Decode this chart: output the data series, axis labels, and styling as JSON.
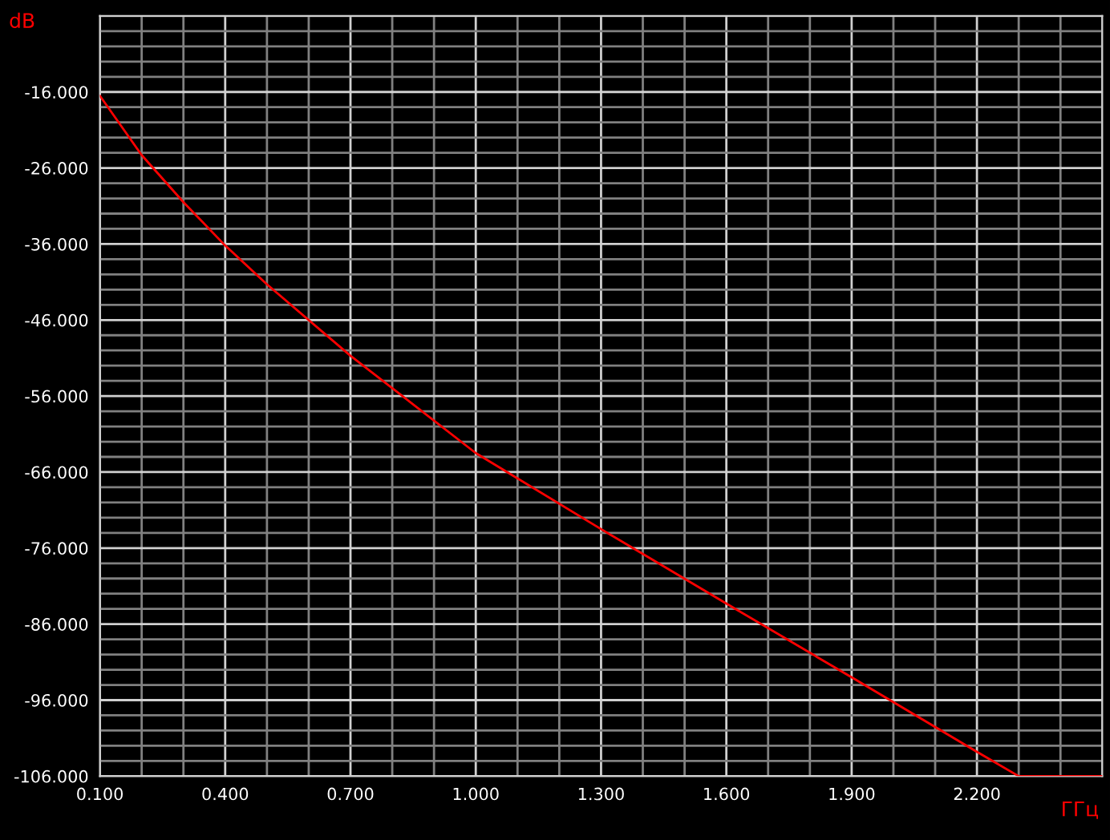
{
  "chart_data": {
    "type": "line",
    "xlabel": "ГГц",
    "ylabel": "dB",
    "x": [
      0.1,
      0.2,
      0.3,
      0.4,
      0.5,
      0.7,
      1.0,
      1.3,
      1.6,
      1.9,
      2.2,
      2.3,
      2.5
    ],
    "series": [
      {
        "color": "#ff0000",
        "values": [
          -16.5,
          -24.3,
          -30.5,
          -36.2,
          -41.3,
          -50.7,
          -63.5,
          -73.5,
          -83.3,
          -93.0,
          -102.8,
          -106.0,
          -106.0
        ]
      }
    ],
    "xlim": [
      0.1,
      2.5
    ],
    "ylim": [
      -106,
      -6
    ],
    "xticks": [
      {
        "value": 0.1,
        "label": "0.100"
      },
      {
        "value": 0.2,
        "label": null
      },
      {
        "value": 0.3,
        "label": null
      },
      {
        "value": 0.4,
        "label": "0.400"
      },
      {
        "value": 0.5,
        "label": null
      },
      {
        "value": 0.6,
        "label": null
      },
      {
        "value": 0.7,
        "label": "0.700"
      },
      {
        "value": 0.8,
        "label": null
      },
      {
        "value": 0.9,
        "label": null
      },
      {
        "value": 1.0,
        "label": "1.000"
      },
      {
        "value": 1.1,
        "label": null
      },
      {
        "value": 1.2,
        "label": null
      },
      {
        "value": 1.3,
        "label": "1.300"
      },
      {
        "value": 1.4,
        "label": null
      },
      {
        "value": 1.5,
        "label": null
      },
      {
        "value": 1.6,
        "label": "1.600"
      },
      {
        "value": 1.7,
        "label": null
      },
      {
        "value": 1.8,
        "label": null
      },
      {
        "value": 1.9,
        "label": "1.900"
      },
      {
        "value": 2.0,
        "label": null
      },
      {
        "value": 2.1,
        "label": null
      },
      {
        "value": 2.2,
        "label": "2.200"
      },
      {
        "value": 2.3,
        "label": null
      },
      {
        "value": 2.4,
        "label": null
      },
      {
        "value": 2.5,
        "label": null
      }
    ],
    "yticks": [
      {
        "value": -106,
        "label": "-106.000"
      },
      {
        "value": -104,
        "label": null
      },
      {
        "value": -102,
        "label": null
      },
      {
        "value": -100,
        "label": null
      },
      {
        "value": -98,
        "label": null
      },
      {
        "value": -96,
        "label": "-96.000"
      },
      {
        "value": -94,
        "label": null
      },
      {
        "value": -92,
        "label": null
      },
      {
        "value": -90,
        "label": null
      },
      {
        "value": -88,
        "label": null
      },
      {
        "value": -86,
        "label": "-86.000"
      },
      {
        "value": -84,
        "label": null
      },
      {
        "value": -82,
        "label": null
      },
      {
        "value": -80,
        "label": null
      },
      {
        "value": -78,
        "label": null
      },
      {
        "value": -76,
        "label": "-76.000"
      },
      {
        "value": -74,
        "label": null
      },
      {
        "value": -72,
        "label": null
      },
      {
        "value": -70,
        "label": null
      },
      {
        "value": -68,
        "label": null
      },
      {
        "value": -66,
        "label": "-66.000"
      },
      {
        "value": -64,
        "label": null
      },
      {
        "value": -62,
        "label": null
      },
      {
        "value": -60,
        "label": null
      },
      {
        "value": -58,
        "label": null
      },
      {
        "value": -56,
        "label": "-56.000"
      },
      {
        "value": -54,
        "label": null
      },
      {
        "value": -52,
        "label": null
      },
      {
        "value": -50,
        "label": null
      },
      {
        "value": -48,
        "label": null
      },
      {
        "value": -46,
        "label": "-46.000"
      },
      {
        "value": -44,
        "label": null
      },
      {
        "value": -42,
        "label": null
      },
      {
        "value": -40,
        "label": null
      },
      {
        "value": -38,
        "label": null
      },
      {
        "value": -36,
        "label": "-36.000"
      },
      {
        "value": -34,
        "label": null
      },
      {
        "value": -32,
        "label": null
      },
      {
        "value": -30,
        "label": null
      },
      {
        "value": -28,
        "label": null
      },
      {
        "value": -26,
        "label": "-26.000"
      },
      {
        "value": -24,
        "label": null
      },
      {
        "value": -22,
        "label": null
      },
      {
        "value": -20,
        "label": null
      },
      {
        "value": -18,
        "label": null
      },
      {
        "value": -16,
        "label": "-16.000"
      },
      {
        "value": -14,
        "label": null
      },
      {
        "value": -12,
        "label": null
      },
      {
        "value": -10,
        "label": null
      },
      {
        "value": -8,
        "label": null
      },
      {
        "value": -6,
        "label": null
      }
    ],
    "grid": true,
    "marker": "none",
    "line_style": "solid",
    "legend": false
  }
}
